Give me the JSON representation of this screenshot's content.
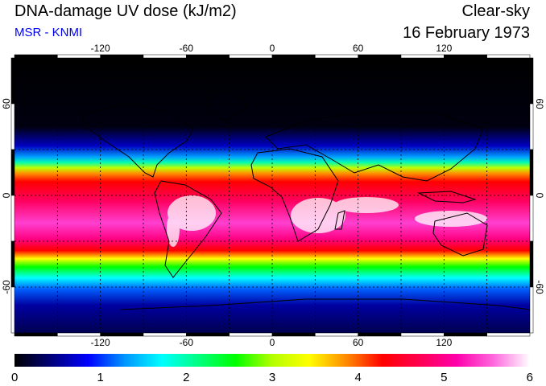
{
  "header": {
    "title": "DNA-damage UV dose (kJ/m2)",
    "subtitle": "MSR - KNMI",
    "sky": "Clear-sky",
    "date": "16 February 1973"
  },
  "colors": {
    "subtitle": "#0000ee",
    "colorbar": [
      "#000000",
      "#00007a",
      "#0000ff",
      "#0096ff",
      "#00ffff",
      "#00ff7f",
      "#00ff00",
      "#b4ff00",
      "#ffff00",
      "#ff8c00",
      "#ff0000",
      "#ff0050",
      "#ff00aa",
      "#ff66dd",
      "#ffffff"
    ]
  },
  "map": {
    "lon_ticks": [
      "-120",
      "-60",
      "0",
      "60",
      "120"
    ],
    "lat_ticks": [
      "60",
      "0",
      "-60"
    ],
    "lon_range": [
      -180,
      180
    ],
    "lat_range": [
      -90,
      90
    ],
    "grid_spacing_deg": 30,
    "grid": true
  },
  "colorbar": {
    "labels": [
      "0",
      "1",
      "2",
      "3",
      "4",
      "5",
      "6"
    ],
    "range": [
      0,
      6
    ]
  }
}
